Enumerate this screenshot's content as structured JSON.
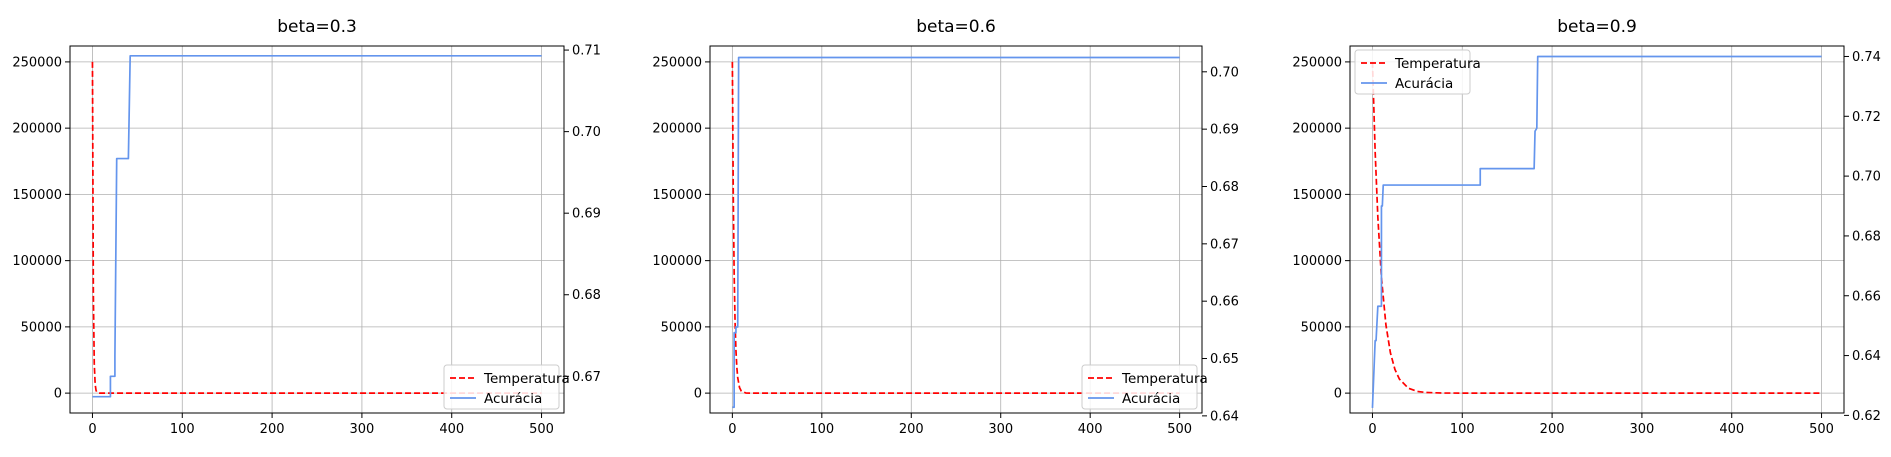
{
  "colors": {
    "temperature": "#ff0000",
    "accuracy": "#6495ed",
    "grid": "#b0b0b0"
  },
  "chart_data": [
    {
      "type": "line",
      "title": "beta=0.3",
      "xlim": [
        -25,
        525
      ],
      "xticks": [
        0,
        100,
        200,
        300,
        400,
        500
      ],
      "ylim_left": [
        -15000,
        262000
      ],
      "yticks_left": [
        0,
        50000,
        100000,
        150000,
        200000,
        250000
      ],
      "ylim_right": [
        0.6655,
        0.7105
      ],
      "yticks_right": [
        0.67,
        0.68,
        0.69,
        0.7,
        0.71
      ],
      "grid": true,
      "legend_position": "lower right",
      "series": [
        {
          "name": "Temperatura",
          "axis": "left",
          "style": "dashed",
          "x": [
            0,
            1,
            2,
            3,
            4,
            5,
            6,
            8,
            10,
            500
          ],
          "y": [
            250000,
            75000,
            22500,
            6750,
            2025,
            608,
            182,
            16,
            1,
            0
          ]
        },
        {
          "name": "Acurácia",
          "axis": "right",
          "style": "solid",
          "x": [
            0,
            20,
            20,
            25,
            25,
            27,
            27,
            40,
            42,
            500
          ],
          "y": [
            0.6675,
            0.6675,
            0.67,
            0.67,
            0.6725,
            0.6967,
            0.6967,
            0.6967,
            0.7093,
            0.7093
          ]
        }
      ]
    },
    {
      "type": "line",
      "title": "beta=0.6",
      "xlim": [
        -25,
        525
      ],
      "xticks": [
        0,
        100,
        200,
        300,
        400,
        500
      ],
      "ylim_left": [
        -15000,
        262000
      ],
      "yticks_left": [
        0,
        50000,
        100000,
        150000,
        200000,
        250000
      ],
      "ylim_right": [
        0.6405,
        0.7045
      ],
      "yticks_right": [
        0.64,
        0.65,
        0.66,
        0.67,
        0.68,
        0.69,
        0.7
      ],
      "grid": true,
      "legend_position": "lower right",
      "series": [
        {
          "name": "Temperatura",
          "axis": "left",
          "style": "dashed",
          "x": [
            0,
            1,
            2,
            3,
            4,
            5,
            6,
            8,
            10,
            15,
            20,
            500
          ],
          "y": [
            250000,
            150000,
            90000,
            54000,
            32400,
            19440,
            11664,
            4199,
            1512,
            118,
            9,
            0
          ]
        },
        {
          "name": "Acurácia",
          "axis": "right",
          "style": "solid",
          "x": [
            0,
            2,
            2,
            4,
            4,
            6,
            7,
            500
          ],
          "y": [
            0.6415,
            0.6415,
            0.6545,
            0.6545,
            0.6555,
            0.6555,
            0.7025,
            0.7025
          ]
        }
      ]
    },
    {
      "type": "line",
      "title": "beta=0.9",
      "xlim": [
        -25,
        525
      ],
      "xticks": [
        0,
        100,
        200,
        300,
        400,
        500
      ],
      "ylim_left": [
        -15000,
        262000
      ],
      "yticks_left": [
        0,
        50000,
        100000,
        150000,
        200000,
        250000
      ],
      "ylim_right": [
        0.6208,
        0.7435
      ],
      "yticks_right": [
        0.62,
        0.64,
        0.66,
        0.68,
        0.7,
        0.72,
        0.74
      ],
      "grid": true,
      "legend_position": "upper left",
      "series": [
        {
          "name": "Temperatura",
          "axis": "left",
          "style": "dashed",
          "x": [
            0,
            3,
            6,
            10,
            15,
            20,
            25,
            30,
            40,
            50,
            60,
            80,
            100,
            500
          ],
          "y": [
            250000,
            182250,
            132860,
            87169,
            51472,
            30394,
            17947,
            10597,
            3695,
            1288,
            449,
            55,
            7,
            0
          ]
        },
        {
          "name": "Acurácia",
          "axis": "right",
          "style": "solid",
          "x": [
            0,
            3,
            4,
            6,
            7,
            10,
            10,
            11,
            12,
            120,
            120,
            180,
            181,
            183,
            184,
            500
          ],
          "y": [
            0.6225,
            0.645,
            0.645,
            0.6565,
            0.6565,
            0.6565,
            0.69,
            0.69,
            0.697,
            0.697,
            0.7025,
            0.7025,
            0.715,
            0.716,
            0.74,
            0.74
          ]
        }
      ]
    }
  ]
}
